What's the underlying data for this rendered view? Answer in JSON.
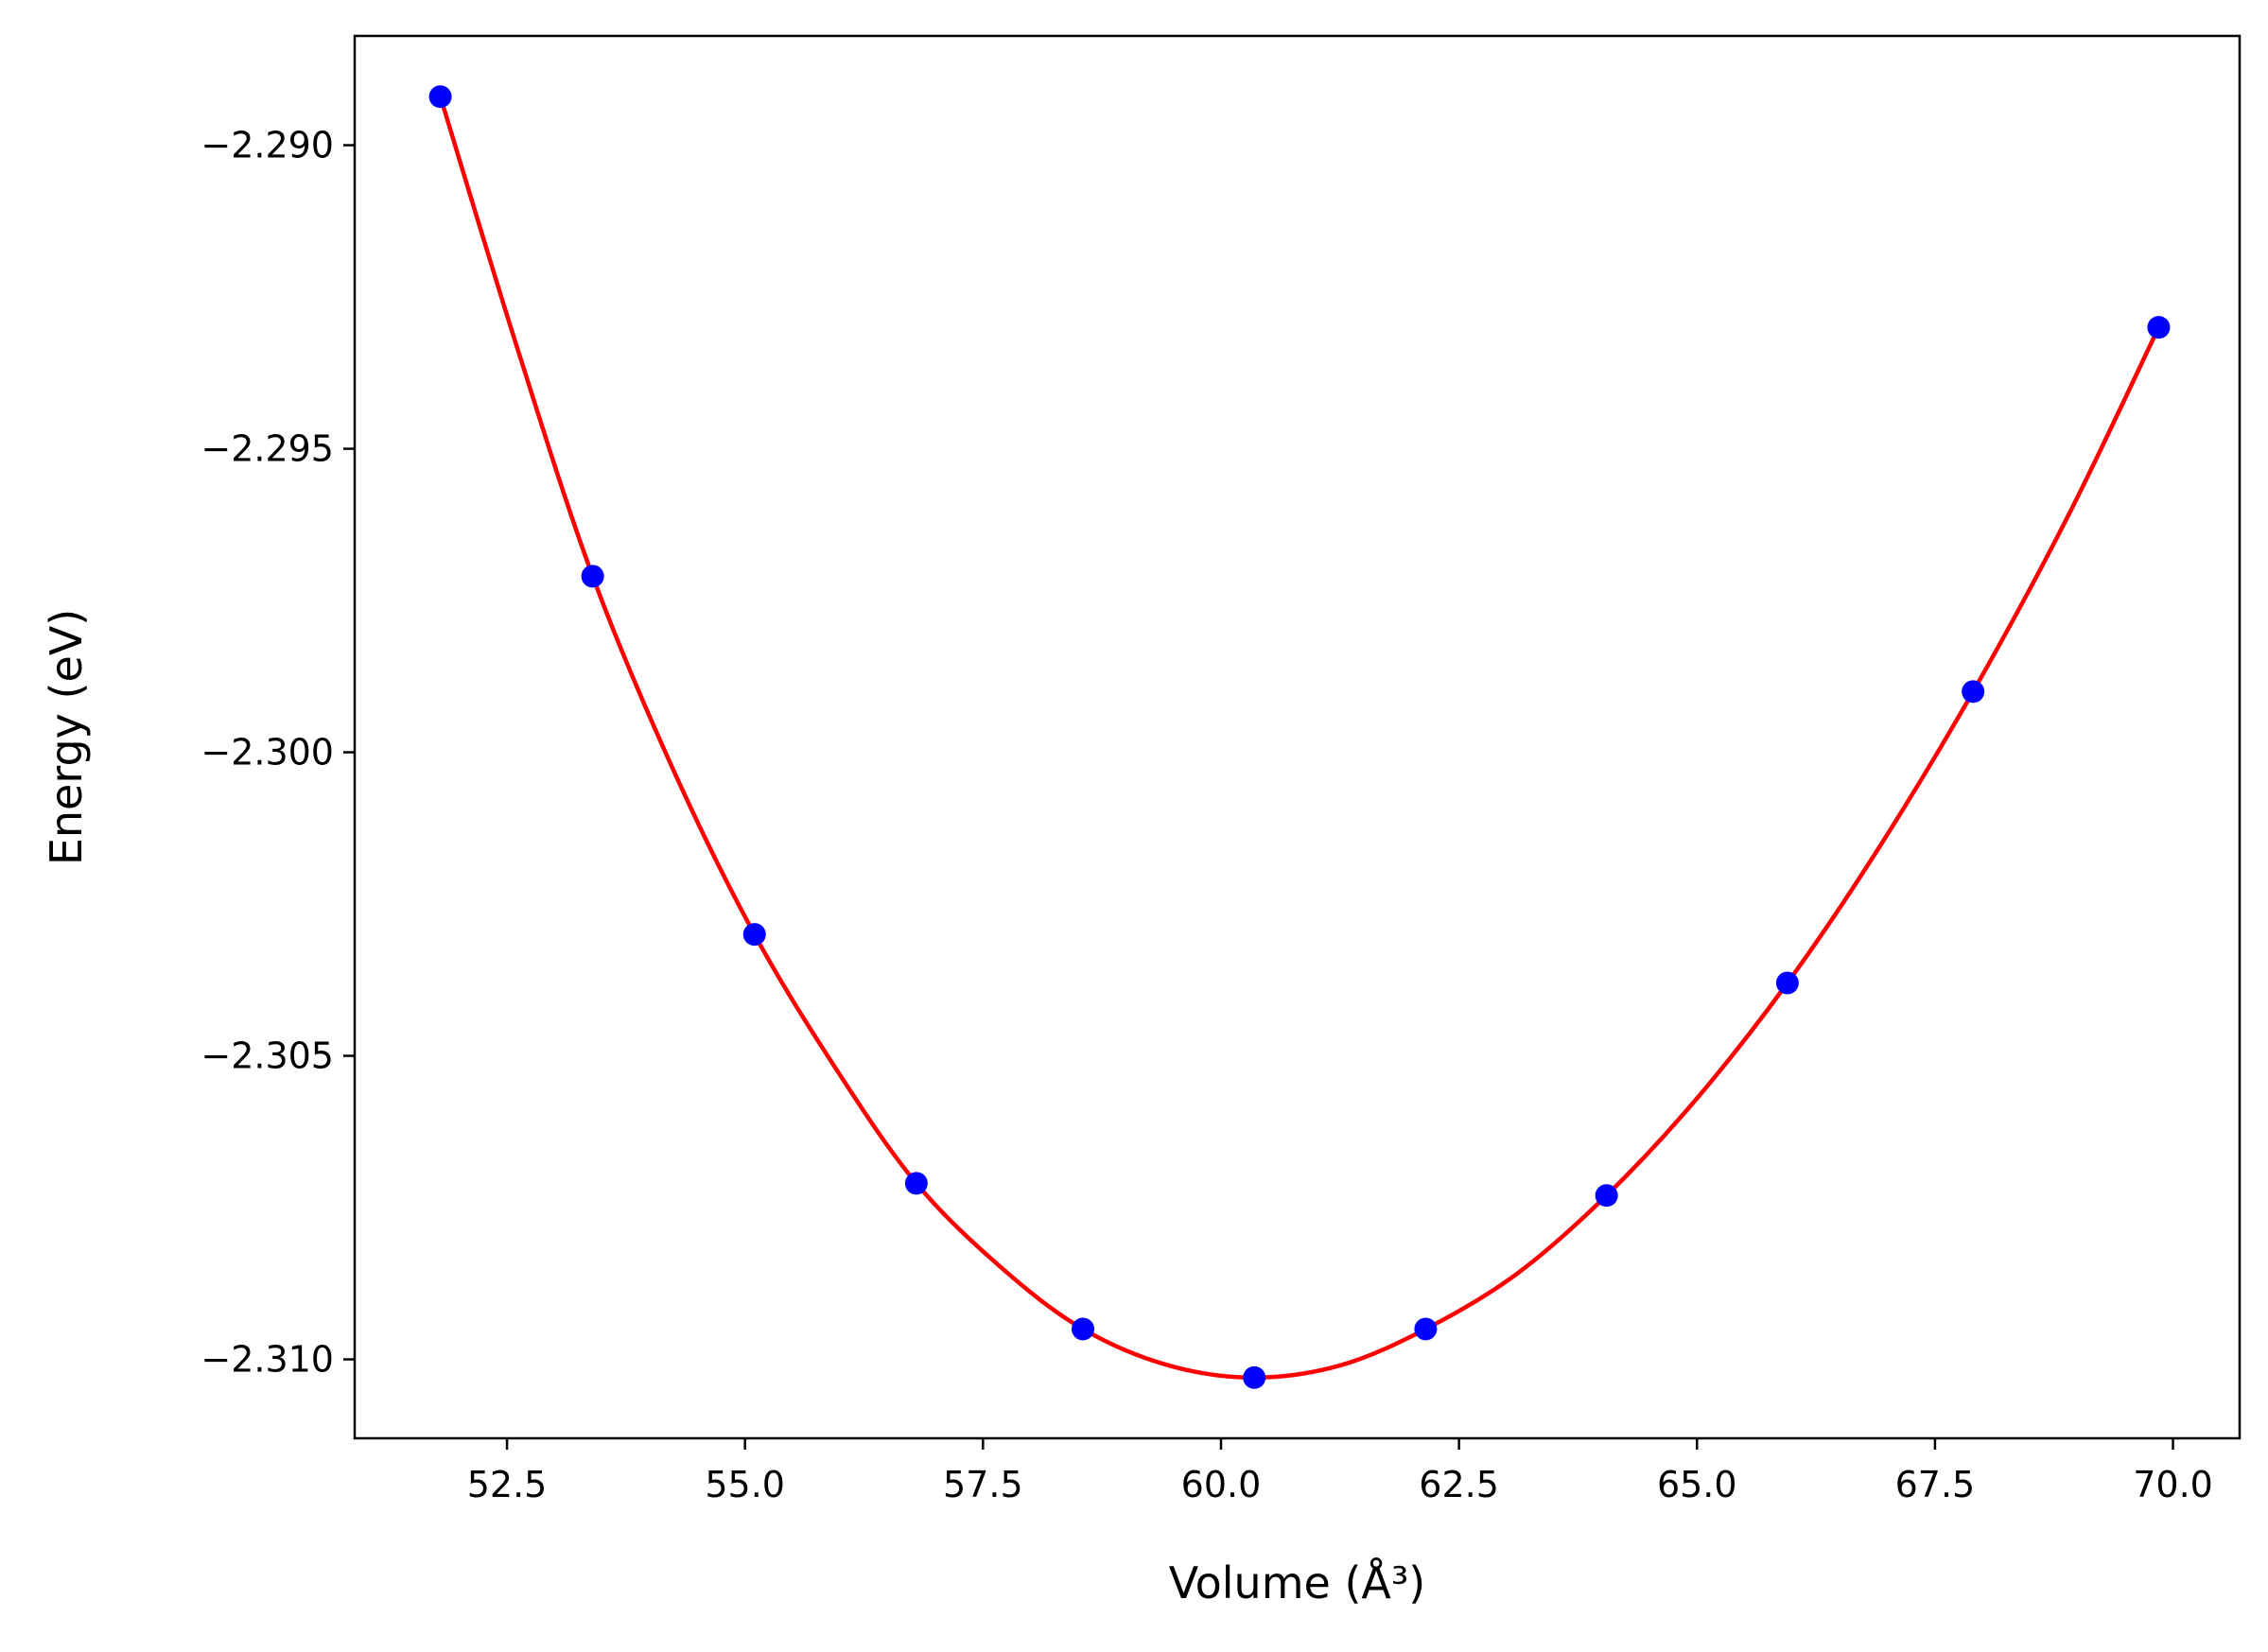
{
  "chart_data": {
    "type": "scatter",
    "title": "",
    "xlabel": "Volume",
    "xlabel_unit": "(Å³)",
    "ylabel": "Energy",
    "ylabel_unit": "(eV)",
    "xlim": [
      50.9,
      70.7
    ],
    "ylim": [
      -2.3113,
      -2.2882
    ],
    "x_ticks": [
      52.5,
      55.0,
      57.5,
      60.0,
      62.5,
      65.0,
      67.5,
      70.0
    ],
    "x_tick_labels": [
      "52.5",
      "55.0",
      "57.5",
      "60.0",
      "62.5",
      "65.0",
      "67.5",
      "70.0"
    ],
    "y_ticks": [
      -2.29,
      -2.295,
      -2.3,
      -2.305,
      -2.31
    ],
    "y_tick_labels": [
      "−2.290",
      "−2.295",
      "−2.300",
      "−2.305",
      "−2.310"
    ],
    "grid": false,
    "series": [
      {
        "kind": "points",
        "color": "#0000ff",
        "x": [
          51.8,
          53.4,
          55.1,
          56.8,
          58.55,
          60.35,
          62.15,
          64.05,
          65.95,
          67.9,
          69.85
        ],
        "y": [
          -2.2892,
          -2.2971,
          -2.303,
          -2.3071,
          -2.3095,
          -2.3103,
          -2.3095,
          -2.3073,
          -2.3038,
          -2.299,
          -2.293
        ]
      },
      {
        "kind": "fit-curve",
        "color": "#ff0000",
        "x": [
          51.8,
          52.6,
          53.4,
          54.25,
          55.1,
          55.95,
          56.8,
          57.7,
          58.55,
          59.45,
          60.35,
          61.25,
          62.15,
          63.1,
          64.05,
          65.0,
          65.95,
          66.9,
          67.9,
          68.9,
          69.85
        ],
        "y": [
          -2.2892,
          -2.2933,
          -2.2971,
          -2.3003,
          -2.303,
          -2.3052,
          -2.3071,
          -2.3085,
          -2.3095,
          -2.3101,
          -2.3103,
          -2.3101,
          -2.3095,
          -2.3086,
          -2.3073,
          -2.3057,
          -2.3038,
          -2.3016,
          -2.299,
          -2.2961,
          -2.293
        ]
      }
    ]
  }
}
